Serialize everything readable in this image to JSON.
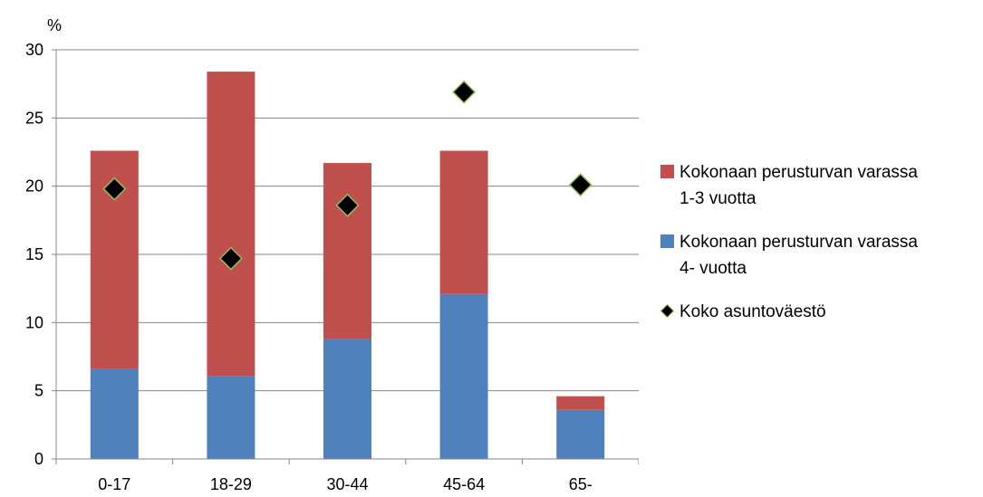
{
  "chart_data": {
    "type": "bar",
    "stacked": true,
    "ylabel": "%",
    "ylim": [
      0,
      30
    ],
    "yticks": [
      "0",
      "5",
      "10",
      "15",
      "20",
      "25",
      "30"
    ],
    "categories": [
      "0-17",
      "18-29",
      "30-44",
      "45-64",
      "65-"
    ],
    "series": [
      {
        "name_line1": "Kokonaan perusturvan varassa",
        "name_line2": "4- vuotta",
        "color": "#4f81bd",
        "values": [
          6.6,
          6.1,
          8.8,
          12.1,
          3.6
        ]
      },
      {
        "name_line1": "Kokonaan perusturvan varassa",
        "name_line2": "1-3 vuotta",
        "color": "#c0504d",
        "values": [
          16.0,
          22.3,
          12.9,
          10.5,
          1.0
        ]
      }
    ],
    "points": {
      "name": "Koko asuntoväestö",
      "marker": "diamond",
      "color": "#000000",
      "edge_color": "#9bbb59",
      "values": [
        19.8,
        14.7,
        18.6,
        26.9,
        20.1
      ]
    },
    "grid": true,
    "legend": "right"
  }
}
